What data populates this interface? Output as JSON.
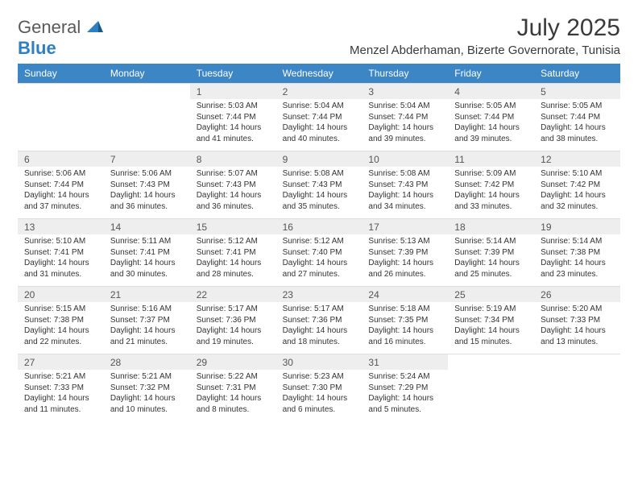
{
  "brand": {
    "part1": "General",
    "part2": "Blue"
  },
  "title": "July 2025",
  "location": "Menzel Abderhaman, Bizerte Governorate, Tunisia",
  "colors": {
    "header_bg": "#3d86c6",
    "header_text": "#ffffff",
    "daynum_bg": "#eeeeee",
    "text": "#333333",
    "brand_gray": "#5a5a5a",
    "brand_blue": "#2f80c3"
  },
  "dow": [
    "Sunday",
    "Monday",
    "Tuesday",
    "Wednesday",
    "Thursday",
    "Friday",
    "Saturday"
  ],
  "weeks": [
    [
      null,
      null,
      {
        "n": "1",
        "sr": "Sunrise: 5:03 AM",
        "ss": "Sunset: 7:44 PM",
        "dl": "Daylight: 14 hours and 41 minutes."
      },
      {
        "n": "2",
        "sr": "Sunrise: 5:04 AM",
        "ss": "Sunset: 7:44 PM",
        "dl": "Daylight: 14 hours and 40 minutes."
      },
      {
        "n": "3",
        "sr": "Sunrise: 5:04 AM",
        "ss": "Sunset: 7:44 PM",
        "dl": "Daylight: 14 hours and 39 minutes."
      },
      {
        "n": "4",
        "sr": "Sunrise: 5:05 AM",
        "ss": "Sunset: 7:44 PM",
        "dl": "Daylight: 14 hours and 39 minutes."
      },
      {
        "n": "5",
        "sr": "Sunrise: 5:05 AM",
        "ss": "Sunset: 7:44 PM",
        "dl": "Daylight: 14 hours and 38 minutes."
      }
    ],
    [
      {
        "n": "6",
        "sr": "Sunrise: 5:06 AM",
        "ss": "Sunset: 7:44 PM",
        "dl": "Daylight: 14 hours and 37 minutes."
      },
      {
        "n": "7",
        "sr": "Sunrise: 5:06 AM",
        "ss": "Sunset: 7:43 PM",
        "dl": "Daylight: 14 hours and 36 minutes."
      },
      {
        "n": "8",
        "sr": "Sunrise: 5:07 AM",
        "ss": "Sunset: 7:43 PM",
        "dl": "Daylight: 14 hours and 36 minutes."
      },
      {
        "n": "9",
        "sr": "Sunrise: 5:08 AM",
        "ss": "Sunset: 7:43 PM",
        "dl": "Daylight: 14 hours and 35 minutes."
      },
      {
        "n": "10",
        "sr": "Sunrise: 5:08 AM",
        "ss": "Sunset: 7:43 PM",
        "dl": "Daylight: 14 hours and 34 minutes."
      },
      {
        "n": "11",
        "sr": "Sunrise: 5:09 AM",
        "ss": "Sunset: 7:42 PM",
        "dl": "Daylight: 14 hours and 33 minutes."
      },
      {
        "n": "12",
        "sr": "Sunrise: 5:10 AM",
        "ss": "Sunset: 7:42 PM",
        "dl": "Daylight: 14 hours and 32 minutes."
      }
    ],
    [
      {
        "n": "13",
        "sr": "Sunrise: 5:10 AM",
        "ss": "Sunset: 7:41 PM",
        "dl": "Daylight: 14 hours and 31 minutes."
      },
      {
        "n": "14",
        "sr": "Sunrise: 5:11 AM",
        "ss": "Sunset: 7:41 PM",
        "dl": "Daylight: 14 hours and 30 minutes."
      },
      {
        "n": "15",
        "sr": "Sunrise: 5:12 AM",
        "ss": "Sunset: 7:41 PM",
        "dl": "Daylight: 14 hours and 28 minutes."
      },
      {
        "n": "16",
        "sr": "Sunrise: 5:12 AM",
        "ss": "Sunset: 7:40 PM",
        "dl": "Daylight: 14 hours and 27 minutes."
      },
      {
        "n": "17",
        "sr": "Sunrise: 5:13 AM",
        "ss": "Sunset: 7:39 PM",
        "dl": "Daylight: 14 hours and 26 minutes."
      },
      {
        "n": "18",
        "sr": "Sunrise: 5:14 AM",
        "ss": "Sunset: 7:39 PM",
        "dl": "Daylight: 14 hours and 25 minutes."
      },
      {
        "n": "19",
        "sr": "Sunrise: 5:14 AM",
        "ss": "Sunset: 7:38 PM",
        "dl": "Daylight: 14 hours and 23 minutes."
      }
    ],
    [
      {
        "n": "20",
        "sr": "Sunrise: 5:15 AM",
        "ss": "Sunset: 7:38 PM",
        "dl": "Daylight: 14 hours and 22 minutes."
      },
      {
        "n": "21",
        "sr": "Sunrise: 5:16 AM",
        "ss": "Sunset: 7:37 PM",
        "dl": "Daylight: 14 hours and 21 minutes."
      },
      {
        "n": "22",
        "sr": "Sunrise: 5:17 AM",
        "ss": "Sunset: 7:36 PM",
        "dl": "Daylight: 14 hours and 19 minutes."
      },
      {
        "n": "23",
        "sr": "Sunrise: 5:17 AM",
        "ss": "Sunset: 7:36 PM",
        "dl": "Daylight: 14 hours and 18 minutes."
      },
      {
        "n": "24",
        "sr": "Sunrise: 5:18 AM",
        "ss": "Sunset: 7:35 PM",
        "dl": "Daylight: 14 hours and 16 minutes."
      },
      {
        "n": "25",
        "sr": "Sunrise: 5:19 AM",
        "ss": "Sunset: 7:34 PM",
        "dl": "Daylight: 14 hours and 15 minutes."
      },
      {
        "n": "26",
        "sr": "Sunrise: 5:20 AM",
        "ss": "Sunset: 7:33 PM",
        "dl": "Daylight: 14 hours and 13 minutes."
      }
    ],
    [
      {
        "n": "27",
        "sr": "Sunrise: 5:21 AM",
        "ss": "Sunset: 7:33 PM",
        "dl": "Daylight: 14 hours and 11 minutes."
      },
      {
        "n": "28",
        "sr": "Sunrise: 5:21 AM",
        "ss": "Sunset: 7:32 PM",
        "dl": "Daylight: 14 hours and 10 minutes."
      },
      {
        "n": "29",
        "sr": "Sunrise: 5:22 AM",
        "ss": "Sunset: 7:31 PM",
        "dl": "Daylight: 14 hours and 8 minutes."
      },
      {
        "n": "30",
        "sr": "Sunrise: 5:23 AM",
        "ss": "Sunset: 7:30 PM",
        "dl": "Daylight: 14 hours and 6 minutes."
      },
      {
        "n": "31",
        "sr": "Sunrise: 5:24 AM",
        "ss": "Sunset: 7:29 PM",
        "dl": "Daylight: 14 hours and 5 minutes."
      },
      null,
      null
    ]
  ]
}
